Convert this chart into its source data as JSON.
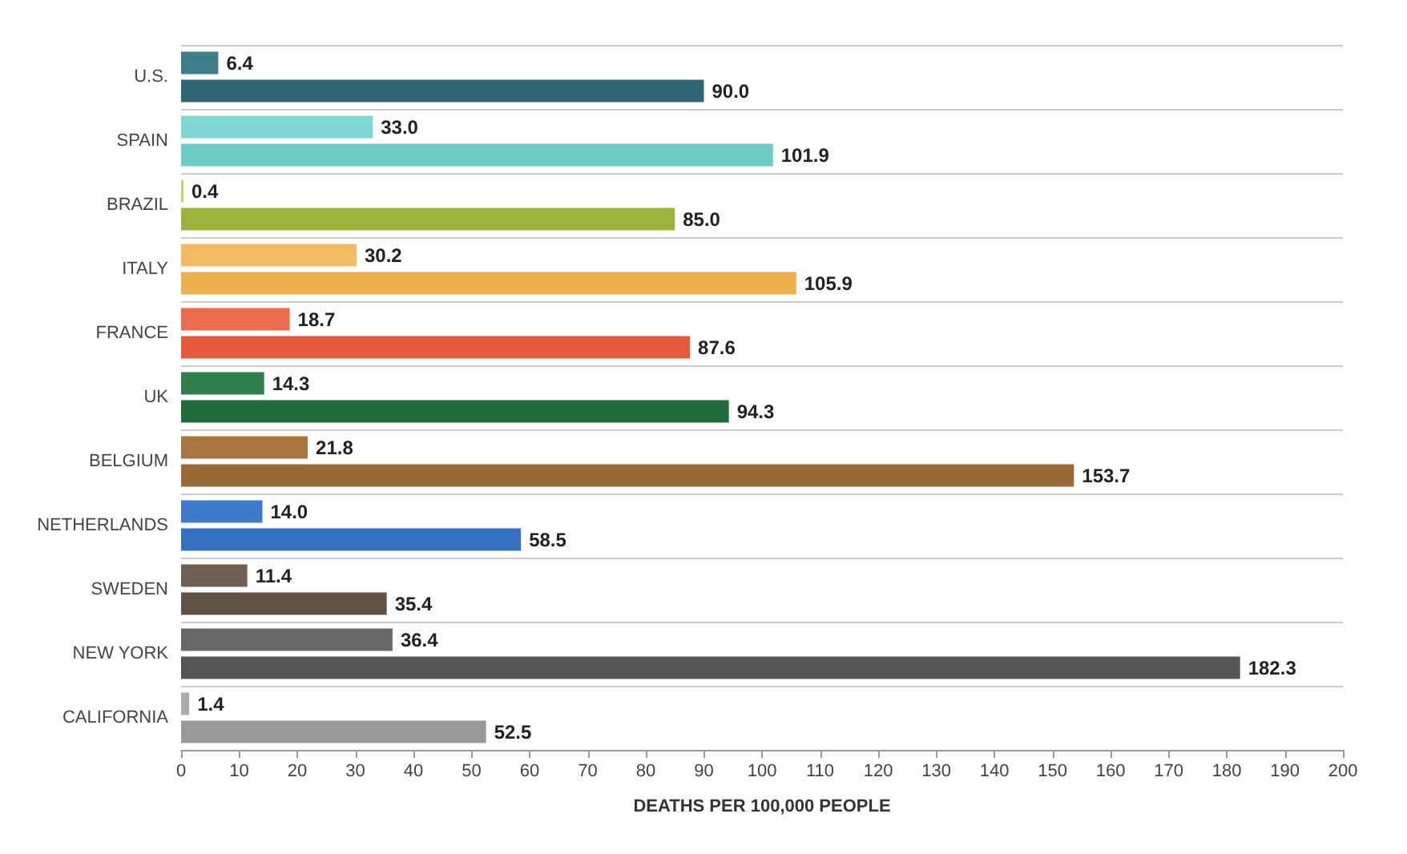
{
  "chart_data": {
    "type": "bar",
    "orientation": "horizontal",
    "xlabel": "DEATHS PER 100,000 PEOPLE",
    "categories": [
      "U.S.",
      "SPAIN",
      "BRAZIL",
      "ITALY",
      "FRANCE",
      "UK",
      "BELGIUM",
      "NETHERLANDS",
      "SWEDEN",
      "NEW YORK",
      "CALIFORNIA"
    ],
    "series": [
      {
        "values": [
          6.4,
          33.0,
          0.4,
          30.2,
          18.7,
          14.3,
          21.8,
          14.0,
          11.4,
          36.4,
          1.4
        ],
        "value_labels": [
          "6.4",
          "33.0",
          "0.4",
          "30.2",
          "18.7",
          "14.3",
          "21.8",
          "14.0",
          "11.4",
          "36.4",
          "1.4"
        ],
        "colors": [
          "#3d7d8c",
          "#7fd6d2",
          "#c8d35e",
          "#f2bb62",
          "#ea6c4c",
          "#2f7f4c",
          "#a97640",
          "#3e7cc9",
          "#6f6053",
          "#686868",
          "#ababab"
        ]
      },
      {
        "values": [
          90.0,
          101.9,
          85.0,
          105.9,
          87.6,
          94.3,
          153.7,
          58.5,
          35.4,
          182.3,
          52.5
        ],
        "value_labels": [
          "90.0",
          "101.9",
          "85.0",
          "105.9",
          "87.6",
          "94.3",
          "153.7",
          "58.5",
          "35.4",
          "182.3",
          "52.5"
        ],
        "colors": [
          "#2f6574",
          "#6ccdc8",
          "#9db43c",
          "#eeb04d",
          "#e65a3c",
          "#1f6b3a",
          "#9a6a36",
          "#3472c0",
          "#625345",
          "#555555",
          "#999999"
        ]
      }
    ],
    "xlim": [
      0,
      200
    ],
    "xticks": [
      0,
      10,
      20,
      30,
      40,
      50,
      60,
      70,
      80,
      90,
      100,
      110,
      120,
      130,
      140,
      150,
      160,
      170,
      180,
      190,
      200
    ],
    "grid": "y"
  }
}
